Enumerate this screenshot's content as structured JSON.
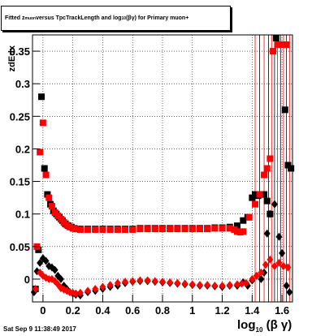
{
  "title_parts": {
    "pre": "Fitted  z",
    "sub": "muon",
    "mid": "  versus TpcTrackLength and log",
    "sub2": "10",
    "post": " (βγ) for Primary muon+"
  },
  "footer": {
    "date": "Sat Sep  9 11:38:49 2017"
  },
  "axis": {
    "xlabel_pre": "log",
    "xlabel_sub": "10",
    "xlabel_post": " (β γ)",
    "ylabel": "zdEdx"
  },
  "colors": {
    "series_black": "#000000",
    "series_red": "#ff0000",
    "grid": "#000000"
  },
  "chart_data": {
    "type": "scatter",
    "title": "Fitted z versus TpcTrackLength and log10(βγ) for Primary muon+",
    "xlabel": "log10 (β γ)",
    "ylabel": "zdEdx",
    "xlim": [
      -0.07,
      1.67
    ],
    "ylim": [
      -0.035,
      0.375
    ],
    "xticks": [
      0,
      0.2,
      0.4,
      0.6,
      0.8,
      1,
      1.2,
      1.4,
      1.6
    ],
    "xticklabels": [
      "0",
      "0.2",
      "0.4",
      "0.6",
      "0.8",
      "1",
      "1.2",
      "1.4",
      "1.6"
    ],
    "yticks": [
      0,
      0.05,
      0.1,
      0.15,
      0.2,
      0.25,
      0.3,
      0.35
    ],
    "yticklabels": [
      "0",
      "0.05",
      "0.1",
      "0.15",
      "0.2",
      "0.25",
      "0.3",
      "0.35"
    ],
    "grid": true,
    "series": [
      {
        "marker": "square",
        "color": "#000000",
        "points": [
          [
            -0.05,
            -0.015
          ],
          [
            -0.03,
            0.045
          ],
          [
            -0.01,
            0.28
          ],
          [
            0.01,
            0.17
          ],
          [
            0.03,
            0.13
          ],
          [
            0.05,
            0.115
          ],
          [
            0.07,
            0.105
          ],
          [
            0.09,
            0.1
          ],
          [
            0.11,
            0.095
          ],
          [
            0.13,
            0.09
          ],
          [
            0.15,
            0.085
          ],
          [
            0.17,
            0.082
          ],
          [
            0.19,
            0.08
          ],
          [
            0.21,
            0.078
          ],
          [
            0.23,
            0.077
          ],
          [
            0.25,
            0.077
          ],
          [
            0.3,
            0.077
          ],
          [
            0.35,
            0.077
          ],
          [
            0.4,
            0.077
          ],
          [
            0.45,
            0.077
          ],
          [
            0.5,
            0.077
          ],
          [
            0.55,
            0.077
          ],
          [
            0.6,
            0.077
          ],
          [
            0.65,
            0.078
          ],
          [
            0.7,
            0.078
          ],
          [
            0.75,
            0.078
          ],
          [
            0.8,
            0.078
          ],
          [
            0.85,
            0.078
          ],
          [
            0.9,
            0.078
          ],
          [
            0.95,
            0.078
          ],
          [
            1.0,
            0.078
          ],
          [
            1.05,
            0.078
          ],
          [
            1.1,
            0.078
          ],
          [
            1.15,
            0.079
          ],
          [
            1.2,
            0.079
          ],
          [
            1.25,
            0.08
          ],
          [
            1.3,
            0.082
          ],
          [
            1.34,
            0.09
          ],
          [
            1.37,
            0.095
          ],
          [
            1.4,
            0.125
          ],
          [
            1.42,
            0.13
          ],
          [
            1.44,
            0.128
          ],
          [
            1.46,
            0.13
          ],
          [
            1.48,
            0.13
          ],
          [
            1.5,
            0.12
          ],
          [
            1.52,
            0.1
          ],
          [
            1.56,
            0.37
          ],
          [
            1.6,
            0.36
          ],
          [
            1.62,
            0.26
          ],
          [
            1.64,
            0.175
          ],
          [
            1.66,
            0.17
          ]
        ]
      },
      {
        "marker": "square",
        "color": "#ff0000",
        "points": [
          [
            -0.04,
            0.05
          ],
          [
            -0.02,
            0.195
          ],
          [
            0.0,
            0.24
          ],
          [
            0.02,
            0.16
          ],
          [
            0.04,
            0.125
          ],
          [
            0.06,
            0.112
          ],
          [
            0.08,
            0.102
          ],
          [
            0.1,
            0.097
          ],
          [
            0.12,
            0.092
          ],
          [
            0.14,
            0.087
          ],
          [
            0.16,
            0.083
          ],
          [
            0.18,
            0.08
          ],
          [
            0.2,
            0.078
          ],
          [
            0.22,
            0.077
          ],
          [
            0.25,
            0.076
          ],
          [
            0.3,
            0.076
          ],
          [
            0.35,
            0.076
          ],
          [
            0.4,
            0.076
          ],
          [
            0.45,
            0.076
          ],
          [
            0.5,
            0.076
          ],
          [
            0.55,
            0.076
          ],
          [
            0.6,
            0.076
          ],
          [
            0.65,
            0.077
          ],
          [
            0.7,
            0.077
          ],
          [
            0.75,
            0.077
          ],
          [
            0.8,
            0.077
          ],
          [
            0.85,
            0.077
          ],
          [
            0.9,
            0.077
          ],
          [
            0.95,
            0.077
          ],
          [
            1.0,
            0.077
          ],
          [
            1.05,
            0.077
          ],
          [
            1.1,
            0.077
          ],
          [
            1.15,
            0.078
          ],
          [
            1.2,
            0.078
          ],
          [
            1.25,
            0.078
          ],
          [
            1.28,
            0.076
          ],
          [
            1.3,
            0.073
          ],
          [
            1.32,
            0.072
          ],
          [
            1.34,
            0.073
          ],
          [
            1.38,
            0.095
          ],
          [
            1.42,
            0.115
          ],
          [
            1.45,
            0.13
          ],
          [
            1.48,
            0.16
          ],
          [
            1.5,
            0.17
          ],
          [
            1.52,
            0.185
          ],
          [
            1.54,
            0.35
          ],
          [
            1.57,
            0.36
          ],
          [
            1.6,
            0.36
          ],
          [
            1.63,
            0.36
          ]
        ]
      },
      {
        "marker": "diamond",
        "color": "#000000",
        "points": [
          [
            -0.06,
            -0.02
          ],
          [
            -0.04,
            0.012
          ],
          [
            -0.02,
            0.025
          ],
          [
            0.0,
            0.032
          ],
          [
            0.02,
            0.028
          ],
          [
            0.04,
            0.02
          ],
          [
            0.06,
            0.018
          ],
          [
            0.08,
            0.014
          ],
          [
            0.1,
            0.005
          ],
          [
            0.12,
            0.0
          ],
          [
            0.14,
            -0.01
          ],
          [
            0.16,
            -0.015
          ],
          [
            0.18,
            -0.02
          ],
          [
            0.2,
            -0.022
          ],
          [
            0.22,
            -0.024
          ],
          [
            0.25,
            -0.025
          ],
          [
            0.3,
            -0.02
          ],
          [
            0.35,
            -0.018
          ],
          [
            0.4,
            -0.015
          ],
          [
            0.45,
            -0.012
          ],
          [
            0.5,
            -0.01
          ],
          [
            0.55,
            -0.006
          ],
          [
            0.6,
            -0.004
          ],
          [
            0.65,
            -0.003
          ],
          [
            0.7,
            -0.003
          ],
          [
            0.75,
            -0.004
          ],
          [
            0.8,
            -0.005
          ],
          [
            0.85,
            -0.006
          ],
          [
            0.9,
            -0.007
          ],
          [
            0.95,
            -0.008
          ],
          [
            1.0,
            -0.009
          ],
          [
            1.05,
            -0.01
          ],
          [
            1.1,
            -0.01
          ],
          [
            1.15,
            -0.011
          ],
          [
            1.2,
            -0.012
          ],
          [
            1.25,
            -0.01
          ],
          [
            1.3,
            -0.01
          ],
          [
            1.34,
            -0.005
          ],
          [
            1.37,
            -0.01
          ],
          [
            1.4,
            -0.002
          ],
          [
            1.43,
            0.005
          ],
          [
            1.46,
            0.0
          ],
          [
            1.48,
            0.01
          ],
          [
            1.5,
            0.07
          ],
          [
            1.52,
            0.1
          ],
          [
            1.55,
            0.115
          ],
          [
            1.58,
            0.065
          ],
          [
            1.6,
            0.04
          ],
          [
            1.63,
            -0.01
          ],
          [
            1.65,
            -0.02
          ]
        ]
      },
      {
        "marker": "diamond",
        "color": "#ff0000",
        "points": [
          [
            -0.05,
            -0.015
          ],
          [
            -0.02,
            0.01
          ],
          [
            0.0,
            0.005
          ],
          [
            0.02,
            0.002
          ],
          [
            0.04,
            0.0
          ],
          [
            0.06,
            0.0
          ],
          [
            0.08,
            -0.003
          ],
          [
            0.1,
            -0.008
          ],
          [
            0.12,
            -0.014
          ],
          [
            0.14,
            -0.016
          ],
          [
            0.16,
            -0.018
          ],
          [
            0.18,
            -0.02
          ],
          [
            0.2,
            -0.021
          ],
          [
            0.22,
            -0.022
          ],
          [
            0.25,
            -0.021
          ],
          [
            0.3,
            -0.018
          ],
          [
            0.35,
            -0.015
          ],
          [
            0.4,
            -0.012
          ],
          [
            0.45,
            -0.009
          ],
          [
            0.5,
            -0.006
          ],
          [
            0.55,
            -0.004
          ],
          [
            0.6,
            -0.003
          ],
          [
            0.65,
            -0.002
          ],
          [
            0.7,
            -0.002
          ],
          [
            0.75,
            -0.003
          ],
          [
            0.8,
            -0.004
          ],
          [
            0.85,
            -0.005
          ],
          [
            0.9,
            -0.006
          ],
          [
            0.95,
            -0.007
          ],
          [
            1.0,
            -0.008
          ],
          [
            1.05,
            -0.009
          ],
          [
            1.1,
            -0.009
          ],
          [
            1.15,
            -0.01
          ],
          [
            1.2,
            -0.01
          ],
          [
            1.25,
            -0.009
          ],
          [
            1.3,
            -0.008
          ],
          [
            1.33,
            -0.007
          ],
          [
            1.36,
            -0.006
          ],
          [
            1.4,
            0.0
          ],
          [
            1.43,
            0.005
          ],
          [
            1.46,
            0.01
          ],
          [
            1.49,
            0.022
          ],
          [
            1.52,
            0.03
          ],
          [
            1.55,
            0.02
          ],
          [
            1.58,
            0.025
          ],
          [
            1.61,
            0.02
          ],
          [
            1.64,
            0.018
          ]
        ]
      }
    ],
    "error_bar_x": [
      1.42,
      1.45,
      1.48,
      1.51,
      1.53,
      1.55,
      1.57,
      1.59,
      1.61,
      1.63,
      1.65
    ]
  }
}
